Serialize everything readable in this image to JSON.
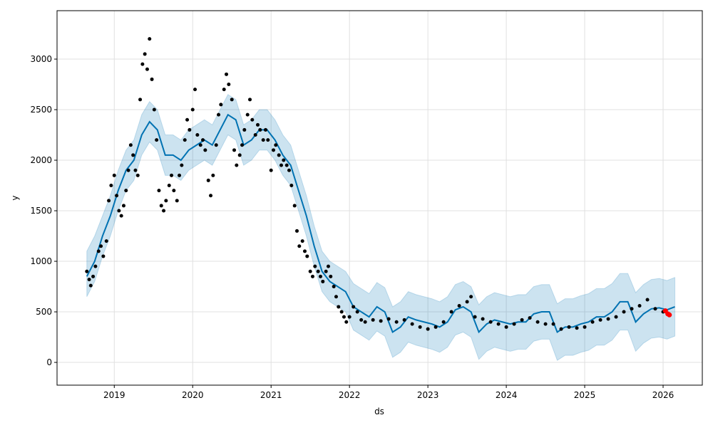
{
  "chart_data": {
    "type": "forecast",
    "xlabel": "ds",
    "ylabel": "y",
    "xlim": [
      2018.27,
      2026.5
    ],
    "ylim": [
      -225,
      3479
    ],
    "xticks": [
      2019,
      2020,
      2021,
      2022,
      2023,
      2024,
      2025,
      2026
    ],
    "yticks": [
      0,
      500,
      1000,
      1500,
      2000,
      2500,
      3000
    ],
    "grid": true,
    "forecast": {
      "color": "#0072b2",
      "band_color": "#0072b2",
      "x": [
        2018.65,
        2018.75,
        2018.85,
        2018.95,
        2019.05,
        2019.15,
        2019.25,
        2019.35,
        2019.45,
        2019.55,
        2019.65,
        2019.75,
        2019.85,
        2019.95,
        2020.05,
        2020.15,
        2020.25,
        2020.35,
        2020.45,
        2020.55,
        2020.65,
        2020.75,
        2020.85,
        2020.95,
        2021.05,
        2021.15,
        2021.25,
        2021.35,
        2021.45,
        2021.55,
        2021.65,
        2021.75,
        2021.85,
        2021.95,
        2022.05,
        2022.15,
        2022.25,
        2022.35,
        2022.45,
        2022.55,
        2022.65,
        2022.75,
        2022.85,
        2022.95,
        2023.05,
        2023.15,
        2023.25,
        2023.35,
        2023.45,
        2023.55,
        2023.65,
        2023.75,
        2023.85,
        2023.95,
        2024.05,
        2024.15,
        2024.25,
        2024.35,
        2024.45,
        2024.55,
        2024.65,
        2024.75,
        2024.85,
        2024.95,
        2025.05,
        2025.15,
        2025.25,
        2025.35,
        2025.45,
        2025.55,
        2025.65,
        2025.75,
        2025.85,
        2025.95,
        2026.05,
        2026.15
      ],
      "values": [
        850,
        1000,
        1250,
        1450,
        1700,
        1900,
        2000,
        2250,
        2380,
        2300,
        2050,
        2050,
        2000,
        2100,
        2150,
        2200,
        2150,
        2300,
        2450,
        2400,
        2150,
        2200,
        2300,
        2300,
        2200,
        2050,
        1950,
        1700,
        1450,
        1150,
        900,
        800,
        750,
        700,
        550,
        500,
        450,
        550,
        500,
        300,
        350,
        450,
        420,
        400,
        380,
        350,
        400,
        520,
        550,
        500,
        300,
        380,
        420,
        400,
        380,
        400,
        400,
        480,
        500,
        500,
        300,
        350,
        350,
        380,
        400,
        450,
        450,
        500,
        600,
        600,
        400,
        480,
        530,
        540,
        520,
        550
      ],
      "lower": [
        650,
        800,
        1050,
        1250,
        1500,
        1700,
        1800,
        2050,
        2180,
        2100,
        1850,
        1850,
        1800,
        1900,
        1950,
        2000,
        1950,
        2100,
        2250,
        2200,
        1950,
        2000,
        2100,
        2100,
        2000,
        1850,
        1750,
        1500,
        1250,
        950,
        700,
        600,
        550,
        500,
        320,
        270,
        220,
        310,
        260,
        50,
        100,
        200,
        170,
        150,
        130,
        100,
        150,
        270,
        300,
        250,
        30,
        110,
        150,
        130,
        110,
        130,
        130,
        210,
        230,
        230,
        20,
        70,
        70,
        100,
        120,
        170,
        170,
        220,
        320,
        320,
        110,
        190,
        240,
        250,
        230,
        260
      ],
      "upper": [
        1100,
        1250,
        1450,
        1650,
        1900,
        2100,
        2200,
        2450,
        2580,
        2500,
        2250,
        2250,
        2200,
        2300,
        2350,
        2400,
        2350,
        2500,
        2650,
        2600,
        2350,
        2400,
        2500,
        2500,
        2400,
        2250,
        2150,
        1900,
        1650,
        1350,
        1100,
        1000,
        950,
        900,
        780,
        730,
        680,
        790,
        740,
        550,
        600,
        700,
        670,
        650,
        630,
        600,
        650,
        770,
        800,
        750,
        570,
        650,
        690,
        670,
        650,
        670,
        670,
        750,
        770,
        770,
        580,
        630,
        630,
        660,
        680,
        730,
        730,
        780,
        880,
        880,
        690,
        770,
        820,
        830,
        810,
        840
      ]
    },
    "observed": {
      "color": "#000000",
      "x": [
        2018.65,
        2018.68,
        2018.7,
        2018.73,
        2018.76,
        2018.8,
        2018.83,
        2018.86,
        2018.9,
        2018.93,
        2018.96,
        2019.0,
        2019.03,
        2019.06,
        2019.09,
        2019.12,
        2019.15,
        2019.18,
        2019.21,
        2019.24,
        2019.27,
        2019.3,
        2019.33,
        2019.36,
        2019.39,
        2019.42,
        2019.45,
        2019.48,
        2019.51,
        2019.54,
        2019.57,
        2019.6,
        2019.63,
        2019.66,
        2019.7,
        2019.73,
        2019.76,
        2019.8,
        2019.83,
        2019.86,
        2019.9,
        2019.93,
        2019.96,
        2020.0,
        2020.03,
        2020.06,
        2020.1,
        2020.13,
        2020.16,
        2020.2,
        2020.23,
        2020.26,
        2020.3,
        2020.33,
        2020.36,
        2020.4,
        2020.43,
        2020.46,
        2020.5,
        2020.53,
        2020.56,
        2020.6,
        2020.63,
        2020.66,
        2020.7,
        2020.73,
        2020.76,
        2020.8,
        2020.83,
        2020.86,
        2020.9,
        2020.93,
        2020.96,
        2021.0,
        2021.03,
        2021.06,
        2021.1,
        2021.13,
        2021.16,
        2021.2,
        2021.23,
        2021.26,
        2021.3,
        2021.33,
        2021.36,
        2021.4,
        2021.43,
        2021.46,
        2021.5,
        2021.53,
        2021.56,
        2021.6,
        2021.63,
        2021.66,
        2021.7,
        2021.73,
        2021.76,
        2021.8,
        2021.83,
        2021.86,
        2021.9,
        2021.93,
        2021.96,
        2022.0,
        2022.05,
        2022.1,
        2022.15,
        2022.2,
        2022.3,
        2022.4,
        2022.5,
        2022.6,
        2022.7,
        2022.8,
        2022.9,
        2023.0,
        2023.1,
        2023.2,
        2023.3,
        2023.4,
        2023.5,
        2023.55,
        2023.6,
        2023.7,
        2023.8,
        2023.9,
        2024.0,
        2024.1,
        2024.2,
        2024.3,
        2024.4,
        2024.5,
        2024.6,
        2024.7,
        2024.8,
        2024.9,
        2025.0,
        2025.1,
        2025.2,
        2025.3,
        2025.4,
        2025.5,
        2025.6,
        2025.7,
        2025.8,
        2025.9,
        2026.0
      ],
      "values": [
        900,
        820,
        760,
        850,
        950,
        1100,
        1150,
        1050,
        1200,
        1600,
        1750,
        1850,
        1650,
        1500,
        1450,
        1550,
        1700,
        1900,
        2150,
        2050,
        1900,
        1850,
        2600,
        2950,
        3050,
        2900,
        3200,
        2800,
        2500,
        2200,
        1700,
        1550,
        1500,
        1600,
        1750,
        1850,
        1700,
        1600,
        1850,
        1950,
        2200,
        2400,
        2300,
        2500,
        2700,
        2250,
        2150,
        2200,
        2100,
        1800,
        1650,
        1850,
        2150,
        2450,
        2550,
        2700,
        2850,
        2750,
        2600,
        2100,
        1950,
        2050,
        2150,
        2300,
        2450,
        2600,
        2400,
        2250,
        2350,
        2300,
        2200,
        2300,
        2200,
        1900,
        2100,
        2150,
        2050,
        1950,
        2000,
        1950,
        1900,
        1750,
        1550,
        1300,
        1150,
        1200,
        1100,
        1050,
        900,
        850,
        950,
        900,
        850,
        800,
        900,
        950,
        850,
        750,
        650,
        550,
        500,
        450,
        400,
        450,
        550,
        500,
        420,
        400,
        420,
        410,
        430,
        400,
        420,
        380,
        350,
        330,
        350,
        400,
        500,
        560,
        600,
        650,
        450,
        430,
        400,
        380,
        350,
        380,
        420,
        440,
        400,
        380,
        380,
        330,
        350,
        340,
        350,
        400,
        420,
        430,
        450,
        500,
        530,
        560,
        620,
        530,
        500
      ]
    },
    "actual": {
      "color": "#ff0000",
      "x": [
        2026.03,
        2026.06,
        2026.08
      ],
      "values": [
        510,
        480,
        470
      ]
    }
  }
}
